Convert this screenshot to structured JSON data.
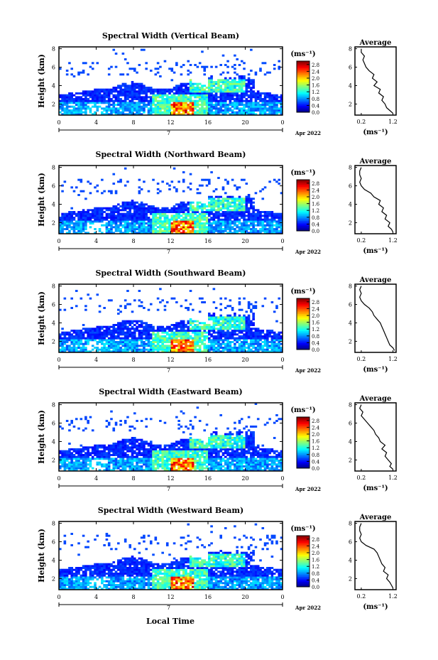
{
  "figure": {
    "xlabel": "Local Time",
    "date_label": "Apr 2022",
    "day_label": "7",
    "ylabel": "Height (km)",
    "colorbar_unit": "(ms⁻¹)",
    "profile_title": "Average",
    "profile_unit": "(ms⁻¹)"
  },
  "chart_data": [
    {
      "type": "heatmap",
      "title": "Spectral Width (Vertical Beam)",
      "xlabel": "Local Time",
      "ylabel": "Height (km)",
      "x_ticks": [
        "0",
        "4",
        "8",
        "12",
        "16",
        "20",
        "0"
      ],
      "y_ticks": [
        "2",
        "4",
        "6",
        "8"
      ],
      "xlim": [
        0,
        24
      ],
      "ylim": [
        0.8,
        8.2
      ],
      "colorbar": {
        "unit": "(ms⁻¹)",
        "ticks": [
          "0.0",
          "0.4",
          "0.8",
          "1.2",
          "1.6",
          "2.0",
          "2.4",
          "2.8"
        ],
        "range": [
          0,
          3.0
        ]
      },
      "date": "Apr 2022",
      "day": "7",
      "profile": {
        "title": "Average",
        "xlabel": "(ms⁻¹)",
        "x_ticks": [
          "0.2",
          "1.2"
        ],
        "y_ticks": [
          "2",
          "4",
          "6",
          "8"
        ],
        "xlim": [
          0.0,
          1.3
        ],
        "ylim": [
          0.8,
          8.2
        ],
        "heights": [
          1.0,
          1.3,
          1.6,
          2.0,
          2.4,
          2.8,
          3.2,
          3.6,
          4.0,
          4.4,
          4.8,
          5.2,
          5.6,
          6.0,
          6.4,
          6.8,
          7.2,
          7.6,
          8.0
        ],
        "values": [
          1.2,
          1.1,
          1.0,
          0.95,
          0.85,
          0.9,
          0.75,
          0.8,
          0.6,
          0.7,
          0.55,
          0.6,
          0.45,
          0.35,
          0.3,
          0.25,
          0.3,
          0.2,
          0.2
        ]
      }
    },
    {
      "type": "heatmap",
      "title": "Spectral Width (Northward Beam)",
      "xlabel": "Local Time",
      "ylabel": "Height (km)",
      "x_ticks": [
        "0",
        "4",
        "8",
        "12",
        "16",
        "20",
        "0"
      ],
      "y_ticks": [
        "2",
        "4",
        "6",
        "8"
      ],
      "xlim": [
        0,
        24
      ],
      "ylim": [
        0.8,
        8.2
      ],
      "colorbar": {
        "unit": "(ms⁻¹)",
        "ticks": [
          "0.0",
          "0.4",
          "0.8",
          "1.2",
          "1.6",
          "2.0",
          "2.4",
          "2.8"
        ],
        "range": [
          0,
          3.0
        ]
      },
      "date": "Apr 2022",
      "day": "7",
      "profile": {
        "title": "Average",
        "xlabel": "(ms⁻¹)",
        "x_ticks": [
          "0.2",
          "1.2"
        ],
        "y_ticks": [
          "2",
          "4",
          "6",
          "8"
        ],
        "xlim": [
          0.0,
          1.3
        ],
        "ylim": [
          0.8,
          8.2
        ],
        "heights": [
          1.0,
          1.3,
          1.6,
          2.0,
          2.4,
          2.8,
          3.2,
          3.6,
          4.0,
          4.4,
          4.8,
          5.2,
          5.6,
          6.0,
          6.4,
          6.8,
          7.2,
          7.6,
          8.0
        ],
        "values": [
          1.2,
          1.15,
          1.05,
          1.1,
          0.95,
          1.0,
          0.85,
          0.9,
          0.75,
          0.8,
          0.6,
          0.5,
          0.3,
          0.2,
          0.15,
          0.2,
          0.15,
          0.15,
          0.2
        ]
      }
    },
    {
      "type": "heatmap",
      "title": "Spectral Width (Southward Beam)",
      "xlabel": "Local Time",
      "ylabel": "Height (km)",
      "x_ticks": [
        "0",
        "4",
        "8",
        "12",
        "16",
        "20",
        "0"
      ],
      "y_ticks": [
        "2",
        "4",
        "6",
        "8"
      ],
      "xlim": [
        0,
        24
      ],
      "ylim": [
        0.8,
        8.2
      ],
      "colorbar": {
        "unit": "(ms⁻¹)",
        "ticks": [
          "0.0",
          "0.4",
          "0.8",
          "1.2",
          "1.6",
          "2.0",
          "2.4",
          "2.8"
        ],
        "range": [
          0,
          3.0
        ]
      },
      "date": "Apr 2022",
      "day": "7",
      "profile": {
        "title": "Average",
        "xlabel": "(ms⁻¹)",
        "x_ticks": [
          "0.2",
          "1.2"
        ],
        "y_ticks": [
          "2",
          "4",
          "6",
          "8"
        ],
        "xlim": [
          0.0,
          1.3
        ],
        "ylim": [
          0.8,
          8.2
        ],
        "heights": [
          1.0,
          1.3,
          1.6,
          2.0,
          2.4,
          2.8,
          3.2,
          3.6,
          4.0,
          4.4,
          4.8,
          5.2,
          5.6,
          6.0,
          6.4,
          6.8,
          7.2,
          7.6,
          8.0
        ],
        "values": [
          1.25,
          1.2,
          1.1,
          1.05,
          1.0,
          0.95,
          0.9,
          0.85,
          0.8,
          0.7,
          0.6,
          0.55,
          0.45,
          0.3,
          0.2,
          0.15,
          0.2,
          0.15,
          0.2
        ]
      }
    },
    {
      "type": "heatmap",
      "title": "Spectral Width (Eastward Beam)",
      "xlabel": "Local Time",
      "ylabel": "Height (km)",
      "x_ticks": [
        "0",
        "4",
        "8",
        "12",
        "16",
        "20",
        "0"
      ],
      "y_ticks": [
        "2",
        "4",
        "6",
        "8"
      ],
      "xlim": [
        0,
        24
      ],
      "ylim": [
        0.8,
        8.2
      ],
      "colorbar": {
        "unit": "(ms⁻¹)",
        "ticks": [
          "0.0",
          "0.4",
          "0.8",
          "1.2",
          "1.6",
          "2.0",
          "2.4",
          "2.8"
        ],
        "range": [
          0,
          3.0
        ]
      },
      "date": "Apr 2022",
      "day": "7",
      "profile": {
        "title": "Average",
        "xlabel": "(ms⁻¹)",
        "x_ticks": [
          "0.2",
          "1.2"
        ],
        "y_ticks": [
          "2",
          "4",
          "6",
          "8"
        ],
        "xlim": [
          0.0,
          1.3
        ],
        "ylim": [
          0.8,
          8.2
        ],
        "heights": [
          1.0,
          1.3,
          1.6,
          2.0,
          2.4,
          2.8,
          3.2,
          3.6,
          4.0,
          4.4,
          4.8,
          5.2,
          5.6,
          6.0,
          6.4,
          6.8,
          7.2,
          7.6,
          8.0
        ],
        "values": [
          1.2,
          1.1,
          1.15,
          1.05,
          0.95,
          1.0,
          0.85,
          0.95,
          0.8,
          0.75,
          0.65,
          0.6,
          0.5,
          0.4,
          0.3,
          0.2,
          0.25,
          0.15,
          0.2
        ]
      }
    },
    {
      "type": "heatmap",
      "title": "Spectral Width (Westward Beam)",
      "xlabel": "Local Time",
      "ylabel": "Height (km)",
      "x_ticks": [
        "0",
        "4",
        "8",
        "12",
        "16",
        "20",
        "0"
      ],
      "y_ticks": [
        "2",
        "4",
        "6",
        "8"
      ],
      "xlim": [
        0,
        24
      ],
      "ylim": [
        0.8,
        8.2
      ],
      "colorbar": {
        "unit": "(ms⁻¹)",
        "ticks": [
          "0.0",
          "0.4",
          "0.8",
          "1.2",
          "1.6",
          "2.0",
          "2.4",
          "2.8"
        ],
        "range": [
          0,
          3.0
        ]
      },
      "date": "Apr 2022",
      "day": "7",
      "profile": {
        "title": "Average",
        "xlabel": "(ms⁻¹)",
        "x_ticks": [
          "0.2",
          "1.2"
        ],
        "y_ticks": [
          "2",
          "4",
          "6",
          "8"
        ],
        "xlim": [
          0.0,
          1.3
        ],
        "ylim": [
          0.8,
          8.2
        ],
        "heights": [
          1.0,
          1.3,
          1.6,
          2.0,
          2.4,
          2.8,
          3.2,
          3.6,
          4.0,
          4.4,
          4.8,
          5.2,
          5.6,
          6.0,
          6.4,
          6.8,
          7.2,
          7.6,
          8.0
        ],
        "values": [
          1.2,
          1.15,
          1.1,
          1.0,
          1.05,
          0.9,
          0.95,
          0.85,
          0.8,
          0.75,
          0.7,
          0.6,
          0.35,
          0.2,
          0.15,
          0.2,
          0.15,
          0.15,
          0.2
        ]
      }
    }
  ]
}
